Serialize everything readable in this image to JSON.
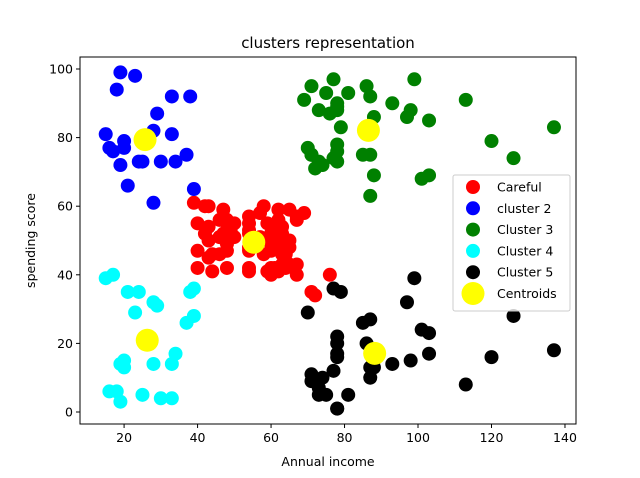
{
  "chart_data": {
    "type": "scatter",
    "title": "clusters representation",
    "xlabel": "Annual income",
    "ylabel": "spending score",
    "xlim": [
      8,
      143
    ],
    "ylim": [
      -3.5,
      103.5
    ],
    "xticks": [
      20,
      40,
      60,
      80,
      100,
      120,
      140
    ],
    "yticks": [
      0,
      20,
      40,
      60,
      80,
      100
    ],
    "grid": false,
    "legend_position": "center-right",
    "series": [
      {
        "name": "Careful",
        "color": "#ff0000",
        "points": [
          [
            39,
            61
          ],
          [
            40,
            55
          ],
          [
            40,
            47
          ],
          [
            40,
            42
          ],
          [
            42,
            60
          ],
          [
            42,
            52
          ],
          [
            43,
            60
          ],
          [
            43,
            50
          ],
          [
            43,
            54
          ],
          [
            43,
            45
          ],
          [
            44,
            41
          ],
          [
            44,
            46
          ],
          [
            46,
            51
          ],
          [
            46,
            56
          ],
          [
            46,
            51
          ],
          [
            46,
            46
          ],
          [
            47,
            52
          ],
          [
            47,
            59
          ],
          [
            48,
            47
          ],
          [
            48,
            55
          ],
          [
            48,
            42
          ],
          [
            48,
            49
          ],
          [
            48,
            56
          ],
          [
            49,
            53
          ],
          [
            50,
            51
          ],
          [
            50,
            55
          ],
          [
            54,
            41
          ],
          [
            54,
            52
          ],
          [
            54,
            47
          ],
          [
            54,
            53
          ],
          [
            54,
            57
          ],
          [
            54,
            48
          ],
          [
            54,
            42
          ],
          [
            54,
            55
          ],
          [
            57,
            58
          ],
          [
            57,
            51
          ],
          [
            58,
            60
          ],
          [
            58,
            46
          ],
          [
            59,
            55
          ],
          [
            59,
            41
          ],
          [
            60,
            49
          ],
          [
            60,
            40
          ],
          [
            60,
            42
          ],
          [
            60,
            52
          ],
          [
            60,
            47
          ],
          [
            60,
            50
          ],
          [
            61,
            42
          ],
          [
            61,
            49
          ],
          [
            62,
            41
          ],
          [
            62,
            48
          ],
          [
            62,
            59
          ],
          [
            62,
            55
          ],
          [
            62,
            56
          ],
          [
            62,
            42
          ],
          [
            63,
            50
          ],
          [
            63,
            46
          ],
          [
            63,
            43
          ],
          [
            63,
            48
          ],
          [
            63,
            52
          ],
          [
            63,
            54
          ],
          [
            64,
            42
          ],
          [
            64,
            46
          ],
          [
            65,
            48
          ],
          [
            65,
            50
          ],
          [
            65,
            43
          ],
          [
            65,
            59
          ],
          [
            67,
            43
          ],
          [
            67,
            57
          ],
          [
            67,
            56
          ],
          [
            67,
            40
          ],
          [
            69,
            58
          ],
          [
            71,
            35
          ],
          [
            72,
            34
          ],
          [
            76,
            40
          ]
        ]
      },
      {
        "name": "cluster 2",
        "color": "#0000ff",
        "points": [
          [
            15,
            81
          ],
          [
            16,
            77
          ],
          [
            17,
            76
          ],
          [
            18,
            94
          ],
          [
            19,
            72
          ],
          [
            19,
            99
          ],
          [
            20,
            77
          ],
          [
            20,
            79
          ],
          [
            21,
            66
          ],
          [
            23,
            98
          ],
          [
            24,
            73
          ],
          [
            25,
            73
          ],
          [
            28,
            82
          ],
          [
            28,
            61
          ],
          [
            29,
            87
          ],
          [
            30,
            73
          ],
          [
            33,
            92
          ],
          [
            33,
            81
          ],
          [
            34,
            73
          ],
          [
            37,
            75
          ],
          [
            38,
            92
          ],
          [
            39,
            65
          ]
        ]
      },
      {
        "name": "Cluster 3",
        "color": "#008000",
        "points": [
          [
            69,
            91
          ],
          [
            70,
            77
          ],
          [
            71,
            95
          ],
          [
            71,
            75
          ],
          [
            71,
            75
          ],
          [
            72,
            71
          ],
          [
            73,
            88
          ],
          [
            73,
            73
          ],
          [
            74,
            72
          ],
          [
            75,
            93
          ],
          [
            76,
            87
          ],
          [
            77,
            97
          ],
          [
            77,
            74
          ],
          [
            78,
            90
          ],
          [
            78,
            88
          ],
          [
            78,
            76
          ],
          [
            78,
            89
          ],
          [
            78,
            78
          ],
          [
            78,
            73
          ],
          [
            79,
            83
          ],
          [
            81,
            93
          ],
          [
            85,
            75
          ],
          [
            86,
            95
          ],
          [
            87,
            63
          ],
          [
            87,
            75
          ],
          [
            87,
            92
          ],
          [
            88,
            86
          ],
          [
            88,
            69
          ],
          [
            93,
            90
          ],
          [
            97,
            86
          ],
          [
            98,
            88
          ],
          [
            99,
            97
          ],
          [
            101,
            68
          ],
          [
            103,
            85
          ],
          [
            103,
            69
          ],
          [
            113,
            91
          ],
          [
            120,
            79
          ],
          [
            126,
            74
          ],
          [
            137,
            83
          ]
        ]
      },
      {
        "name": "Cluster 4",
        "color": "#00ffff",
        "points": [
          [
            15,
            39
          ],
          [
            16,
            6
          ],
          [
            17,
            40
          ],
          [
            18,
            6
          ],
          [
            19,
            3
          ],
          [
            19,
            14
          ],
          [
            20,
            15
          ],
          [
            20,
            13
          ],
          [
            21,
            35
          ],
          [
            23,
            29
          ],
          [
            24,
            35
          ],
          [
            25,
            5
          ],
          [
            28,
            14
          ],
          [
            28,
            32
          ],
          [
            29,
            31
          ],
          [
            30,
            4
          ],
          [
            33,
            4
          ],
          [
            33,
            14
          ],
          [
            34,
            17
          ],
          [
            37,
            26
          ],
          [
            38,
            35
          ],
          [
            39,
            36
          ],
          [
            39,
            28
          ]
        ]
      },
      {
        "name": "Cluster 5",
        "color": "#000000",
        "points": [
          [
            70,
            29
          ],
          [
            71,
            11
          ],
          [
            71,
            9
          ],
          [
            73,
            5
          ],
          [
            73,
            7
          ],
          [
            74,
            10
          ],
          [
            75,
            5
          ],
          [
            77,
            12
          ],
          [
            77,
            36
          ],
          [
            78,
            22
          ],
          [
            78,
            17
          ],
          [
            78,
            20
          ],
          [
            78,
            16
          ],
          [
            78,
            1
          ],
          [
            78,
            1
          ],
          [
            79,
            35
          ],
          [
            81,
            5
          ],
          [
            85,
            26
          ],
          [
            86,
            20
          ],
          [
            87,
            27
          ],
          [
            87,
            13
          ],
          [
            87,
            10
          ],
          [
            88,
            13
          ],
          [
            88,
            15
          ],
          [
            93,
            14
          ],
          [
            97,
            32
          ],
          [
            98,
            15
          ],
          [
            99,
            39
          ],
          [
            101,
            24
          ],
          [
            103,
            17
          ],
          [
            103,
            23
          ],
          [
            113,
            8
          ],
          [
            120,
            16
          ],
          [
            126,
            28
          ],
          [
            137,
            18
          ]
        ]
      },
      {
        "name": "Centroids",
        "color": "#ffff00",
        "points": [
          [
            55.3,
            49.5
          ],
          [
            25.7,
            79.4
          ],
          [
            86.5,
            82.1
          ],
          [
            26.3,
            20.9
          ],
          [
            88.2,
            17.1
          ]
        ]
      }
    ]
  }
}
